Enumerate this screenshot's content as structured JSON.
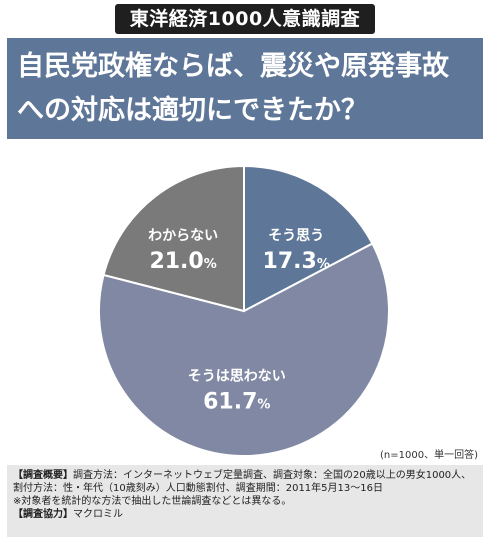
{
  "badge": "東洋経済1000人意識調査",
  "title_lines": [
    "自民党政権ならば、震災や原発事故",
    "への対応は適切にできたか？"
  ],
  "chart_data": {
    "type": "pie",
    "title": "自民党政権ならば、震災や原発事故への対応は適切にできたか？",
    "unit": "%",
    "slices": [
      {
        "label": "そう思う",
        "value": 17.3,
        "display": "17.3",
        "color": "#5e7698"
      },
      {
        "label": "そうは思わない",
        "value": 61.7,
        "display": "61.7",
        "color": "#8088a4"
      },
      {
        "label": "わからない",
        "value": 21.0,
        "display": "21.0",
        "color": "#7a7a7a"
      }
    ]
  },
  "note": "(n=1000、単一回答)",
  "footer": {
    "overview_key": "【調査概要】",
    "overview_text": "調査方法：インターネットウェブ定量調査、調査対象：全国の20歳以上の男女1000人、割付方法：性・年代（10歳刻み）人口動態割付、調査期間：2011年5月13～16日",
    "remark": "※対象者を統計的な方法で抽出した世論調査などとは異なる。",
    "coop_key": "【調査協力】",
    "coop_text": "マクロミル"
  }
}
